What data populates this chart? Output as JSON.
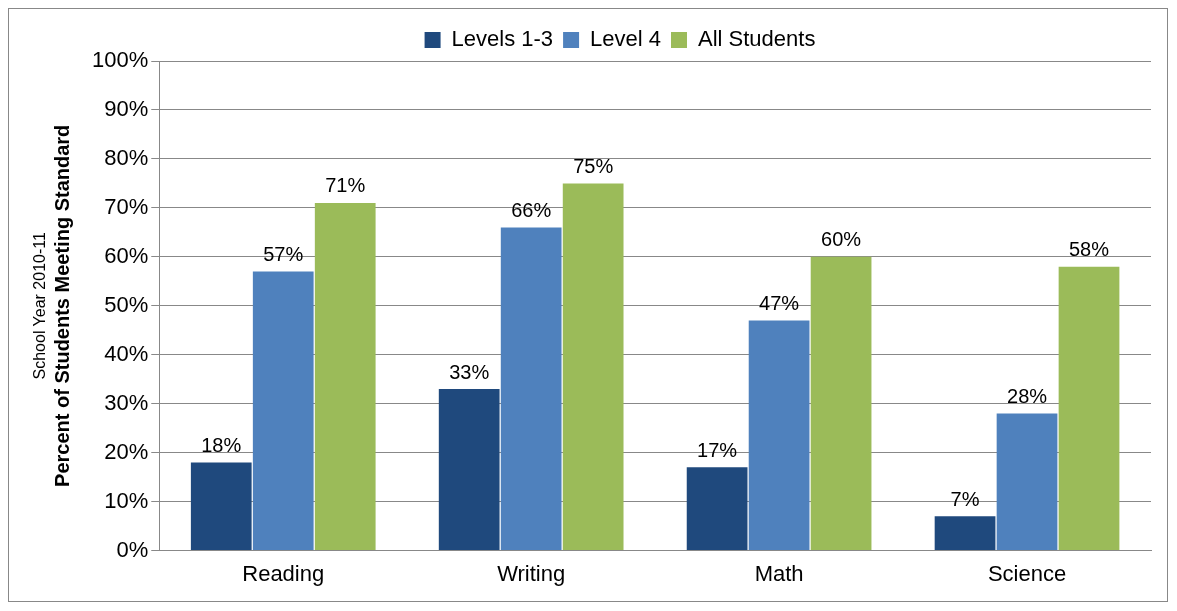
{
  "chart_data": {
    "type": "bar",
    "subtitle": "School Year 2010-11",
    "ylabel": "Percent of Students Meeting Standard",
    "categories": [
      "Reading",
      "Writing",
      "Math",
      "Science"
    ],
    "series": [
      {
        "name": "Levels 1-3",
        "color": "#1f497d",
        "values": [
          18,
          33,
          17,
          7
        ],
        "value_labels": [
          "18%",
          "33%",
          "17%",
          "7%"
        ]
      },
      {
        "name": "Level 4",
        "color": "#4f81bd",
        "values": [
          57,
          66,
          47,
          28
        ],
        "value_labels": [
          "57%",
          "66%",
          "47%",
          "28%"
        ]
      },
      {
        "name": "All Students",
        "color": "#9bbb59",
        "values": [
          71,
          75,
          60,
          58
        ],
        "value_labels": [
          "71%",
          "75%",
          "60%",
          "58%"
        ]
      }
    ],
    "ylim": [
      0,
      100
    ],
    "yticks": [
      {
        "value": 0,
        "label": "0%"
      },
      {
        "value": 10,
        "label": "10%"
      },
      {
        "value": 20,
        "label": "20%"
      },
      {
        "value": 30,
        "label": "30%"
      },
      {
        "value": 40,
        "label": "40%"
      },
      {
        "value": 50,
        "label": "50%"
      },
      {
        "value": 60,
        "label": "60%"
      },
      {
        "value": 70,
        "label": "70%"
      },
      {
        "value": 80,
        "label": "80%"
      },
      {
        "value": 90,
        "label": "90%"
      },
      {
        "value": 100,
        "label": "100%"
      }
    ],
    "grid": "y",
    "legend": "top"
  }
}
